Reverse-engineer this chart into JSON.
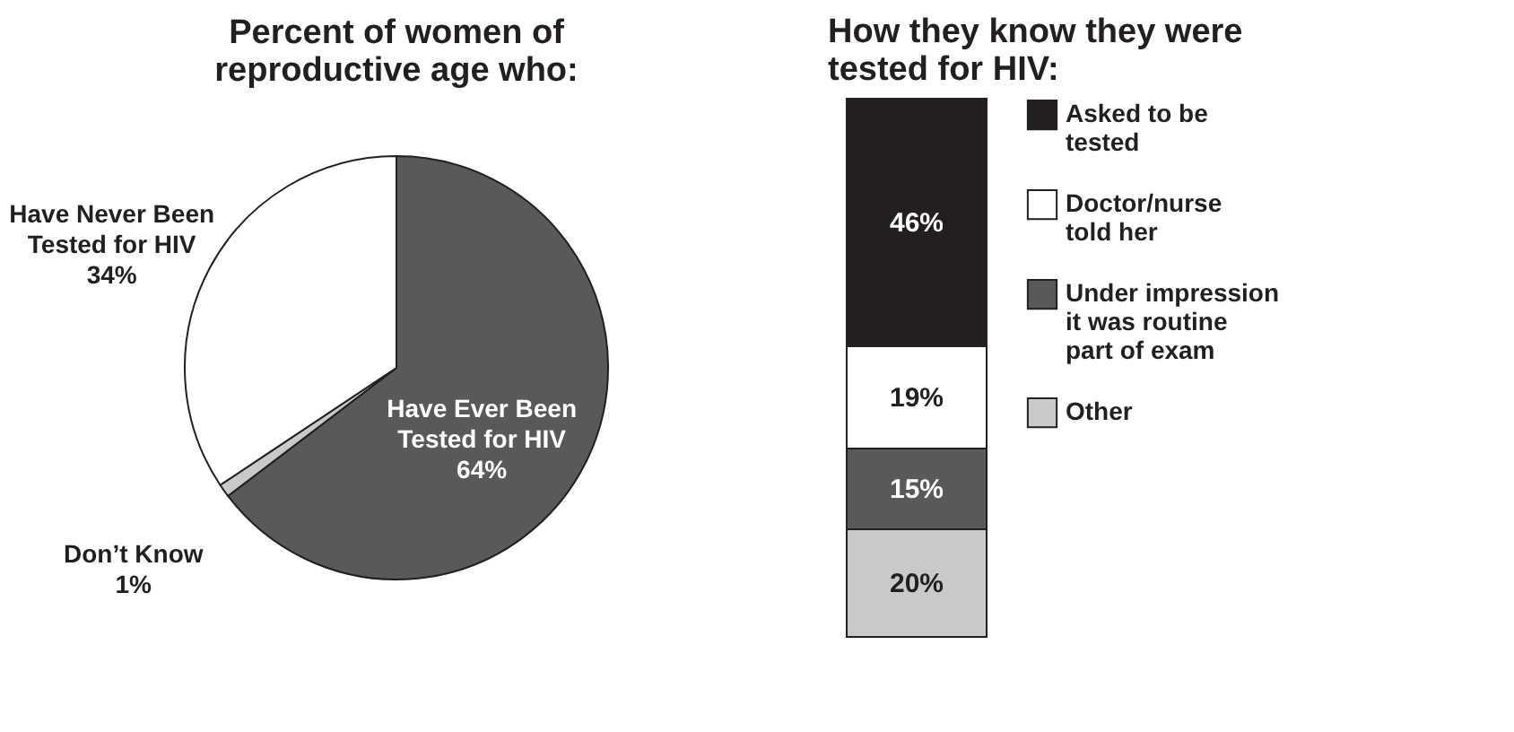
{
  "chart_data": [
    {
      "type": "pie",
      "title": "Percent of women of reproductive age who:",
      "categories": [
        "Have Ever Been Tested for HIV",
        "Don’t Know",
        "Have Never Been Tested for HIV"
      ],
      "values": [
        64,
        1,
        34
      ],
      "colors": [
        "#58595b",
        "#c8c9cb",
        "#ffffff"
      ],
      "value_labels": [
        "64%",
        "1%",
        "34%"
      ],
      "legend": false
    },
    {
      "type": "bar",
      "title": "How they know they were tested for HIV:",
      "stacked": true,
      "categories": [
        null
      ],
      "legend": "right",
      "series": [
        {
          "name": "Other",
          "color": "#c8c9cb",
          "values": [
            20
          ],
          "value_labels": [
            "20%"
          ]
        },
        {
          "name": "Under impression it was routine part of exam",
          "color": "#58595b",
          "values": [
            15
          ],
          "value_labels": [
            "15%"
          ]
        },
        {
          "name": "Doctor/nurse told her",
          "color": "#ffffff",
          "values": [
            19
          ],
          "value_labels": [
            "19%"
          ]
        },
        {
          "name": "Asked to be tested",
          "color": "#231f20",
          "values": [
            46
          ],
          "value_labels": [
            "46%"
          ]
        }
      ]
    }
  ]
}
